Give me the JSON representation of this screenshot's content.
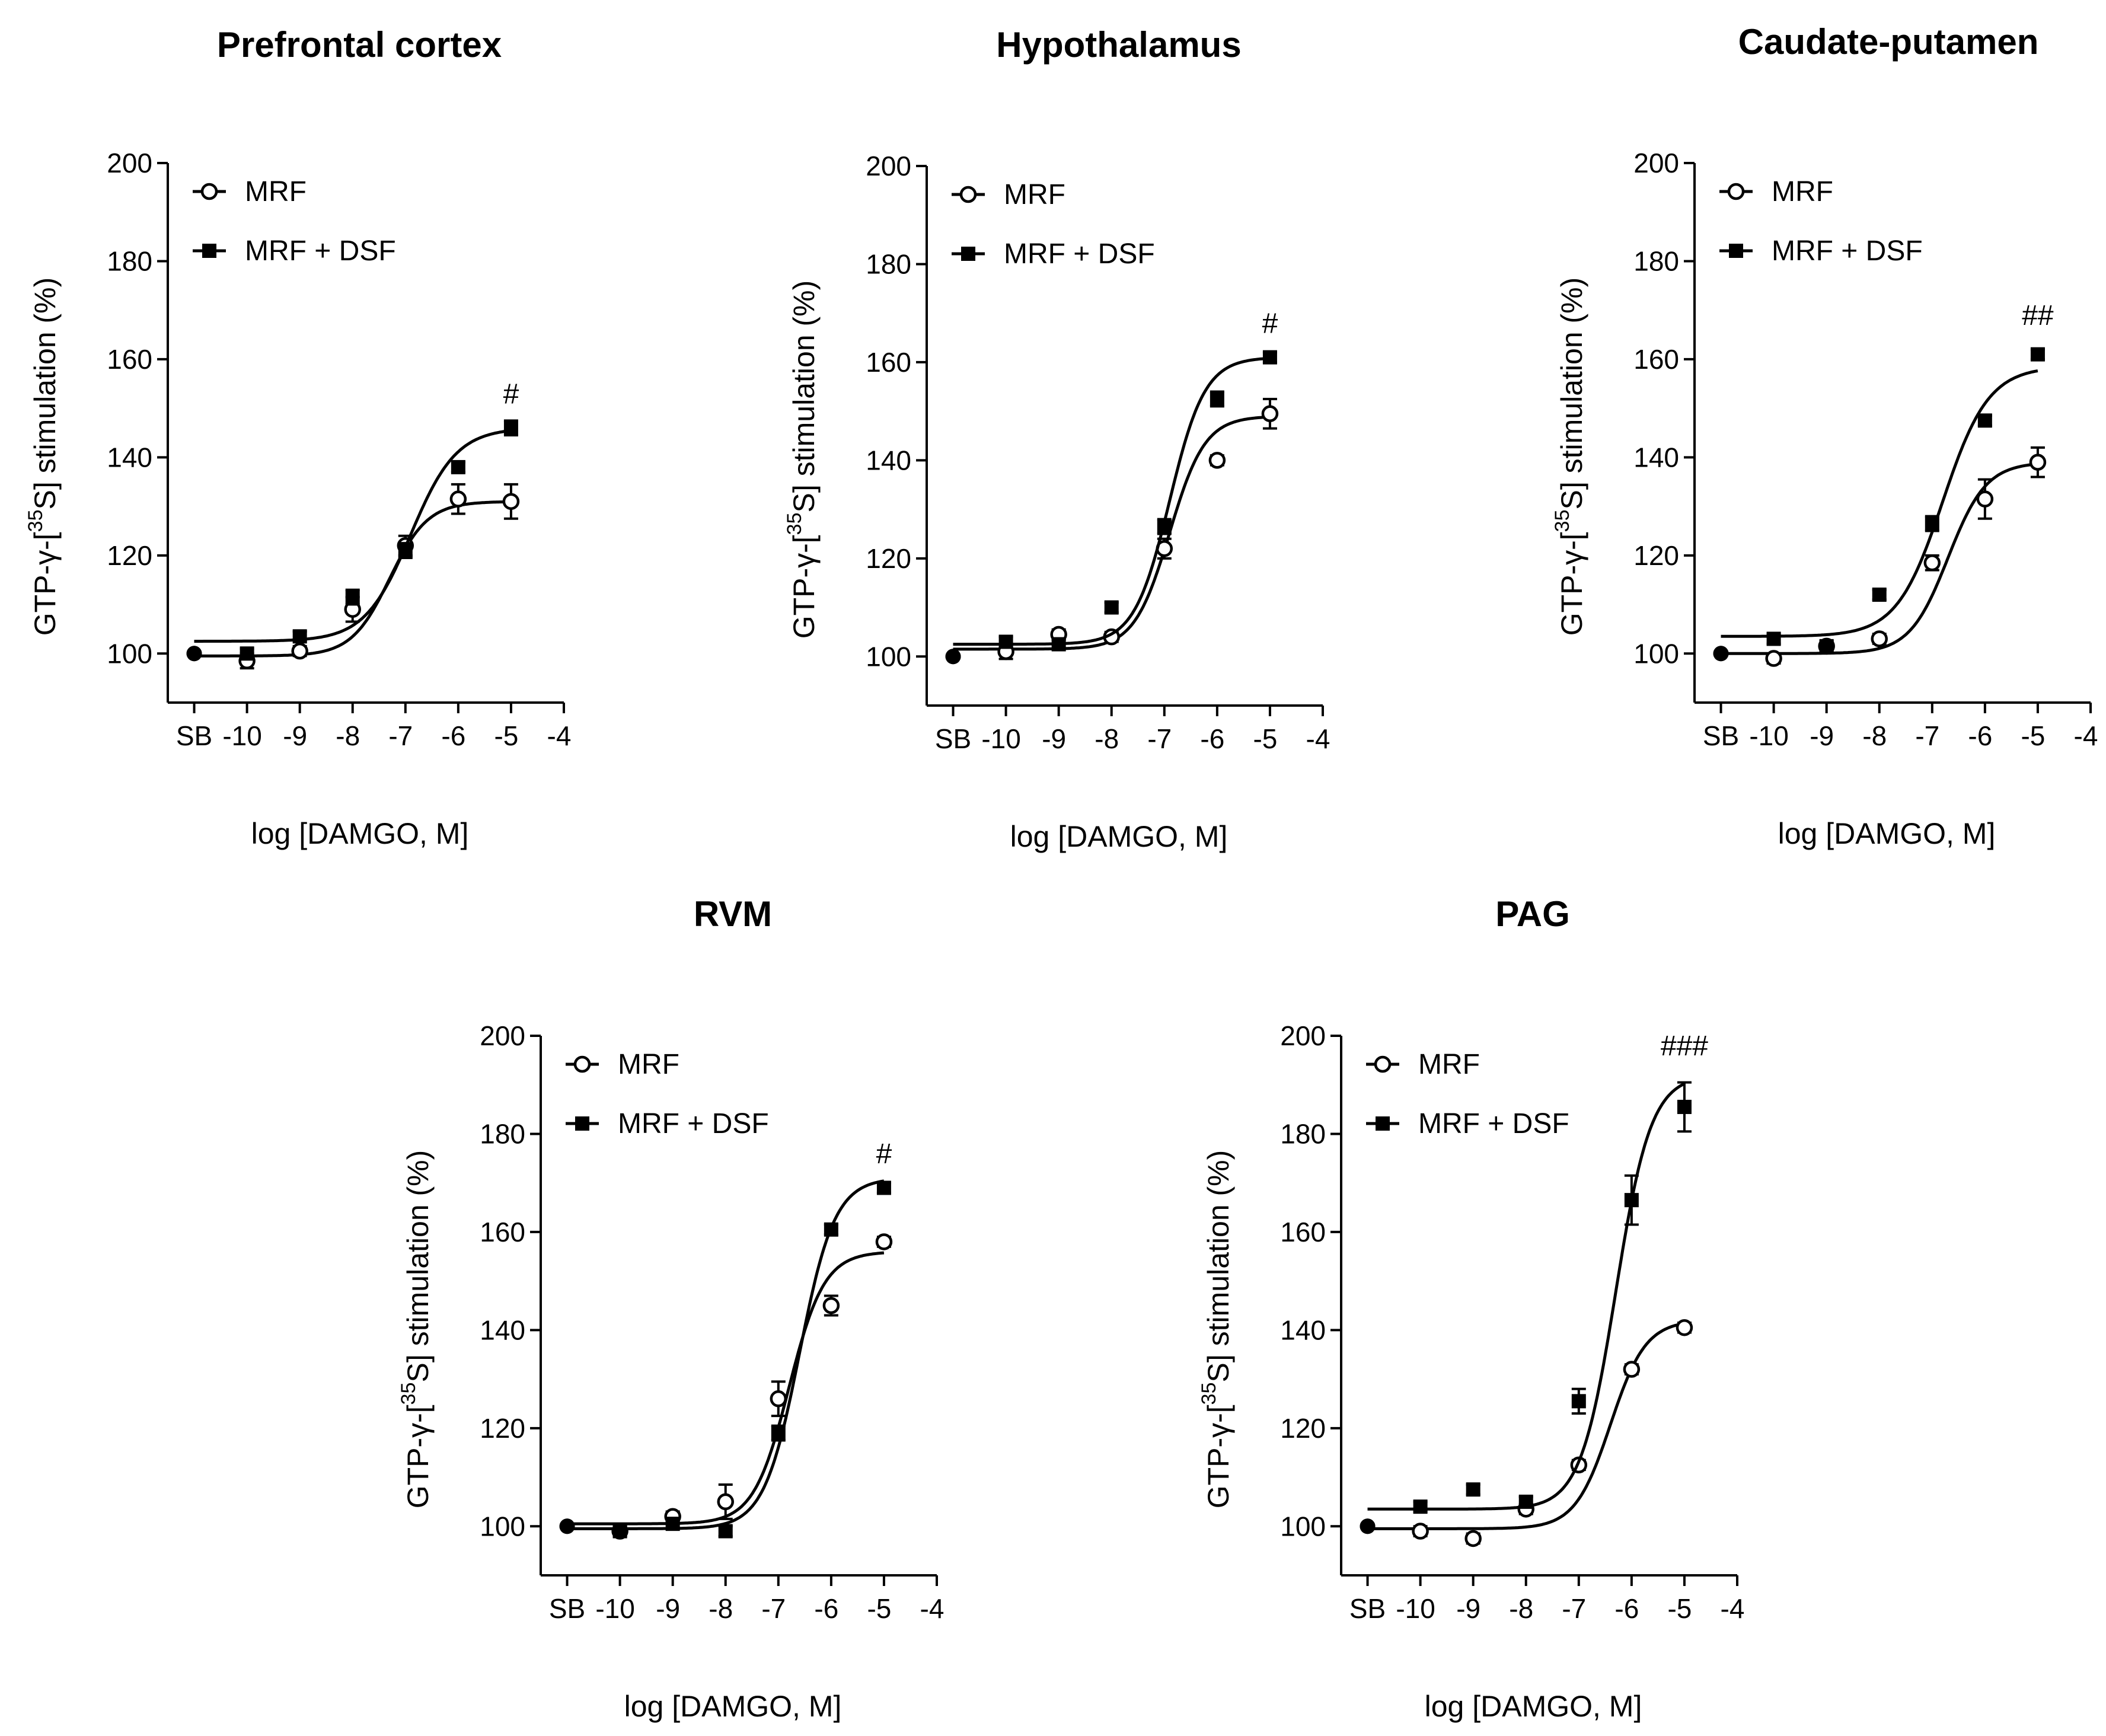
{
  "figure": {
    "x_tick_labels": [
      "SB",
      "-10",
      "-9",
      "-8",
      "-7",
      "-6",
      "-5",
      "-4"
    ],
    "x_ticks": [
      -11,
      -10,
      -9,
      -8,
      -7,
      -6,
      -5,
      -4
    ],
    "y_ticks": [
      100,
      120,
      140,
      160,
      180,
      200
    ],
    "xlabel": "log [DAMGO, M]",
    "ylabel_prefix": "GTP-γ-[",
    "ylabel_sup": "35",
    "ylabel_suffix": "S] stimulation (%)",
    "colors": {
      "ink": "#000000",
      "background": "#ffffff"
    }
  },
  "chart_data": [
    {
      "type": "scatter",
      "title": "Prefrontal cortex",
      "xlabel": "log [DAMGO, M]",
      "ylabel": "GTP-γ-[35S] stimulation (%)",
      "xlim": [
        -11.5,
        -4
      ],
      "ylim": [
        90,
        200
      ],
      "legend": "top-left",
      "grid": false,
      "significance": {
        "label": "#",
        "x": -5,
        "y": 151
      },
      "series": [
        {
          "name": "MRF",
          "marker": "open-circle",
          "x": [
            -11,
            -10,
            -9,
            -8,
            -7,
            -6,
            -5
          ],
          "y": [
            100,
            98.5,
            100.5,
            109,
            122,
            131.5,
            131
          ],
          "err": [
            0,
            1.5,
            1,
            2.5,
            2,
            3,
            3.5
          ],
          "fit": {
            "bottom": 99.5,
            "top": 131,
            "logEC50": -7.3,
            "hill": 1.2
          }
        },
        {
          "name": "MRF + DSF",
          "marker": "filled-square",
          "x": [
            -11,
            -10,
            -9,
            -8,
            -7,
            -6,
            -5
          ],
          "y": [
            100,
            100,
            103.5,
            111.5,
            121,
            138,
            146
          ],
          "err": [
            0,
            1,
            1,
            1.5,
            1.5,
            1,
            1.5
          ],
          "fit": {
            "bottom": 102.5,
            "top": 146,
            "logEC50": -6.9,
            "hill": 1
          }
        }
      ]
    },
    {
      "type": "scatter",
      "title": "Hypothalamus",
      "xlabel": "log [DAMGO, M]",
      "ylabel": "GTP-γ-[35S] stimulation (%)",
      "xlim": [
        -11.5,
        -4
      ],
      "ylim": [
        90,
        200
      ],
      "legend": "top-left",
      "grid": false,
      "significance": {
        "label": "#",
        "x": -5,
        "y": 166
      },
      "series": [
        {
          "name": "MRF",
          "marker": "open-circle",
          "x": [
            -11,
            -10,
            -9,
            -8,
            -7,
            -6,
            -5
          ],
          "y": [
            100,
            101,
            104.5,
            104,
            122,
            140,
            149.5
          ],
          "err": [
            0,
            1.5,
            1,
            1,
            2,
            1,
            3
          ],
          "fit": {
            "bottom": 101.5,
            "top": 149,
            "logEC50": -6.9,
            "hill": 1.3
          }
        },
        {
          "name": "MRF + DSF",
          "marker": "filled-square",
          "x": [
            -11,
            -10,
            -9,
            -8,
            -7,
            -6,
            -5
          ],
          "y": [
            100,
            103,
            102.5,
            110,
            126.5,
            152.5,
            161
          ],
          "err": [
            0,
            1,
            1,
            1,
            1.5,
            1.5,
            1
          ],
          "fit": {
            "bottom": 102.5,
            "top": 161,
            "logEC50": -6.9,
            "hill": 1.3
          }
        }
      ]
    },
    {
      "type": "scatter",
      "title": "Caudate-putamen",
      "xlabel": "log [DAMGO, M]",
      "ylabel": "GTP-γ-[35S] stimulation (%)",
      "xlim": [
        -11.5,
        -4
      ],
      "ylim": [
        90,
        200
      ],
      "legend": "top-left",
      "grid": false,
      "significance": {
        "label": "##",
        "x": -5,
        "y": 167
      },
      "series": [
        {
          "name": "MRF",
          "marker": "open-circle",
          "x": [
            -11,
            -10,
            -9,
            -8,
            -7,
            -6,
            -5
          ],
          "y": [
            100,
            99,
            101.5,
            103,
            118.5,
            131.5,
            139
          ],
          "err": [
            0,
            1,
            1,
            1,
            1.5,
            4,
            3
          ],
          "fit": {
            "bottom": 100,
            "top": 139,
            "logEC50": -6.7,
            "hill": 1.2
          }
        },
        {
          "name": "MRF + DSF",
          "marker": "filled-square",
          "x": [
            -11,
            -10,
            -9,
            -8,
            -7,
            -6,
            -5
          ],
          "y": [
            100,
            103,
            101.5,
            112,
            126.5,
            147.5,
            161
          ],
          "err": [
            0,
            1,
            1,
            1,
            1.5,
            1,
            1
          ],
          "fit": {
            "bottom": 103.5,
            "top": 158.5,
            "logEC50": -6.8,
            "hill": 1
          }
        }
      ]
    },
    {
      "type": "scatter",
      "title": "RVM",
      "xlabel": "log [DAMGO, M]",
      "ylabel": "GTP-γ-[35S] stimulation (%)",
      "xlim": [
        -11.5,
        -4
      ],
      "ylim": [
        90,
        200
      ],
      "legend": "top-left",
      "grid": false,
      "significance": {
        "label": "#",
        "x": -5,
        "y": 174
      },
      "series": [
        {
          "name": "MRF",
          "marker": "open-circle",
          "x": [
            -11,
            -10,
            -9,
            -8,
            -7,
            -6,
            -5
          ],
          "y": [
            100,
            99,
            102,
            105,
            126,
            145,
            158
          ],
          "err": [
            0,
            1,
            1,
            3.5,
            3.5,
            2,
            1
          ],
          "fit": {
            "bottom": 100.5,
            "top": 156,
            "logEC50": -6.8,
            "hill": 1.3
          }
        },
        {
          "name": "MRF + DSF",
          "marker": "filled-square",
          "x": [
            -11,
            -10,
            -9,
            -8,
            -7,
            -6,
            -5
          ],
          "y": [
            100,
            99,
            100.5,
            99,
            119,
            160.5,
            169
          ],
          "err": [
            0,
            1,
            1,
            1,
            1.5,
            1,
            1
          ],
          "fit": {
            "bottom": 99.5,
            "top": 171,
            "logEC50": -6.6,
            "hill": 1.3
          }
        }
      ]
    },
    {
      "type": "scatter",
      "title": "PAG",
      "xlabel": "log [DAMGO, M]",
      "ylabel": "GTP-γ-[35S] stimulation (%)",
      "xlim": [
        -11.5,
        -4
      ],
      "ylim": [
        90,
        200
      ],
      "legend": "top-left",
      "grid": false,
      "significance": {
        "label": "###",
        "x": -5,
        "y": 196
      },
      "series": [
        {
          "name": "MRF",
          "marker": "open-circle",
          "x": [
            -11,
            -10,
            -9,
            -8,
            -7,
            -6,
            -5
          ],
          "y": [
            100,
            99,
            97.5,
            103.5,
            112.5,
            132,
            140.5
          ],
          "err": [
            0,
            1,
            1,
            1,
            1,
            1,
            1
          ],
          "fit": {
            "bottom": 99.5,
            "top": 142,
            "logEC50": -6.4,
            "hill": 1.3
          }
        },
        {
          "name": "MRF + DSF",
          "marker": "filled-square",
          "x": [
            -11,
            -10,
            -9,
            -8,
            -7,
            -6,
            -5
          ],
          "y": [
            100,
            104,
            107.5,
            105,
            125.5,
            166.5,
            185.5
          ],
          "err": [
            0,
            1,
            1,
            1,
            2.5,
            5,
            5
          ],
          "fit": {
            "bottom": 103.5,
            "top": 192,
            "logEC50": -6.3,
            "hill": 1.3
          }
        }
      ]
    }
  ]
}
